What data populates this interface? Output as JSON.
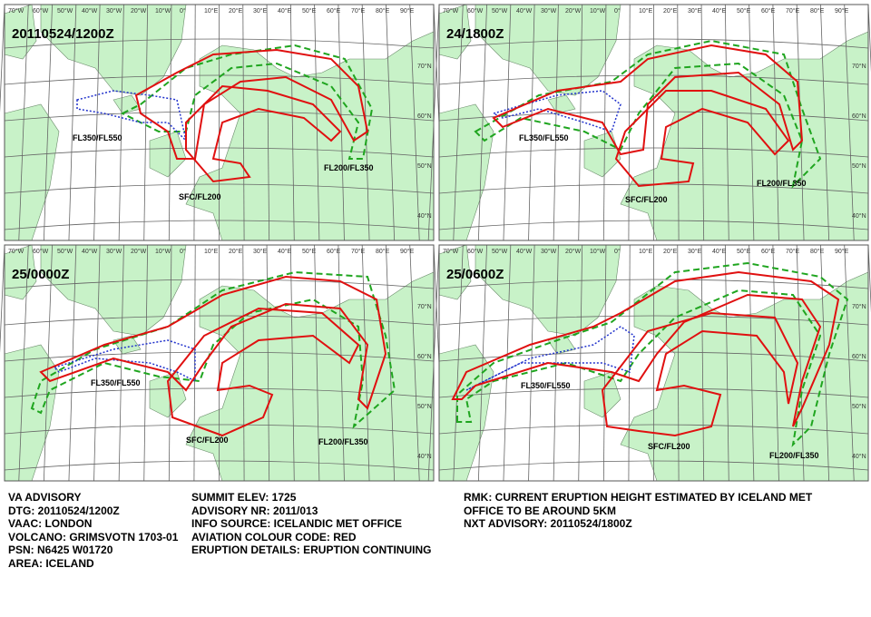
{
  "panels": [
    {
      "title": "20110524/1200Z",
      "labels": [
        "FL350/FL550",
        "SFC/FL200",
        "FL200/FL350"
      ]
    },
    {
      "title": "24/1800Z",
      "labels": [
        "FL350/FL550",
        "SFC/FL200",
        "FL200/FL350"
      ]
    },
    {
      "title": "25/0000Z",
      "labels": [
        "FL350/FL550",
        "SFC/FL200",
        "FL200/FL350"
      ]
    },
    {
      "title": "25/0600Z",
      "labels": [
        "FL350/FL550",
        "SFC/FL200",
        "FL200/FL350"
      ]
    }
  ],
  "graticule": {
    "lon_labels": [
      "70°W",
      "60°W",
      "50°W",
      "40°W",
      "30°W",
      "20°W",
      "10°W",
      "0°",
      "10°E",
      "20°E",
      "30°E",
      "40°E",
      "50°E",
      "60°E",
      "70°E",
      "80°E",
      "90°E"
    ],
    "lat_labels": [
      "70°N",
      "60°N",
      "50°N",
      "40°N"
    ]
  },
  "advisory": {
    "left": [
      "VA ADVISORY",
      "DTG:  20110524/1200Z",
      "VAAC:  LONDON",
      "VOLCANO:  GRIMSVOTN 1703-01",
      "PSN:  N6425 W01720",
      "AREA:  ICELAND"
    ],
    "middle": [
      "SUMMIT ELEV:  1725",
      "ADVISORY NR:  2011/013",
      "INFO SOURCE:  ICELANDIC MET OFFICE",
      "AVIATION COLOUR CODE:  RED",
      "ERUPTION DETAILS:  ERUPTION CONTINUING"
    ],
    "right": [
      "RMK:  CURRENT ERUPTION HEIGHT ESTIMATED BY ICELAND MET OFFICE TO BE AROUND 5KM",
      "NXT ADVISORY:  20110524/1800Z"
    ]
  }
}
